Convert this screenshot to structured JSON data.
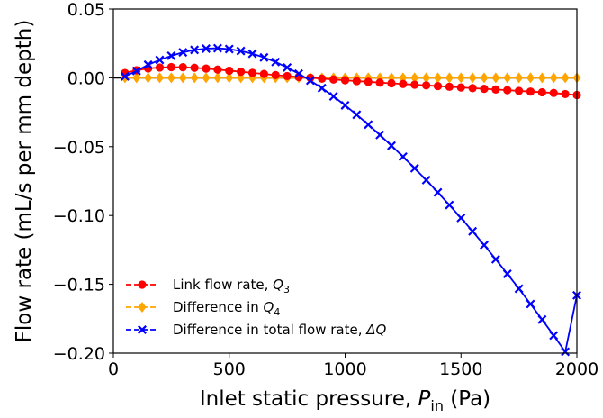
{
  "chart_data": {
    "type": "line",
    "title": "",
    "xlabel_main": "Inlet static pressure, ",
    "xlabel_var": "P",
    "xlabel_sub": "in",
    "xlabel_unit": " (Pa)",
    "ylabel": "Flow rate (mL/s per mm depth)",
    "xlim": [
      0,
      2000
    ],
    "ylim": [
      -0.2,
      0.05
    ],
    "xticks": [
      0,
      500,
      1000,
      1500,
      2000
    ],
    "xtick_labels": [
      "0",
      "500",
      "1000",
      "1500",
      "2000"
    ],
    "yticks": [
      0.05,
      0.0,
      -0.05,
      -0.1,
      -0.15,
      -0.2
    ],
    "ytick_labels": [
      "0.05",
      "0.00",
      "−0.05",
      "−0.10",
      "−0.15",
      "−0.20"
    ],
    "grid": false,
    "legend_position": "lower-left",
    "zero_line": true,
    "x": [
      50,
      100,
      150,
      200,
      250,
      300,
      350,
      400,
      450,
      500,
      550,
      600,
      650,
      700,
      750,
      800,
      850,
      900,
      950,
      1000,
      1050,
      1100,
      1150,
      1200,
      1250,
      1300,
      1350,
      1400,
      1450,
      1500,
      1550,
      1600,
      1650,
      1700,
      1750,
      1800,
      1850,
      1900,
      1950,
      2000
    ],
    "series": [
      {
        "name_main": "Link flow rate, ",
        "name_var": "Q",
        "name_sub": "3",
        "color": "#ff0000",
        "marker": "circle",
        "values": [
          0.0035,
          0.0055,
          0.0068,
          0.0075,
          0.0078,
          0.0077,
          0.0073,
          0.0067,
          0.006,
          0.0052,
          0.0044,
          0.0036,
          0.0028,
          0.002,
          0.0013,
          0.0006,
          0.0,
          -0.0006,
          -0.0012,
          -0.0018,
          -0.0024,
          -0.0029,
          -0.0035,
          -0.004,
          -0.0045,
          -0.005,
          -0.0055,
          -0.006,
          -0.0065,
          -0.007,
          -0.0075,
          -0.008,
          -0.0085,
          -0.009,
          -0.0095,
          -0.01,
          -0.0105,
          -0.011,
          -0.0118,
          -0.0125
        ]
      },
      {
        "name_main": "Difference in ",
        "name_var": "Q",
        "name_sub": "4",
        "color": "#ffa500",
        "marker": "diamond",
        "values": [
          0.0,
          0.0,
          0.0,
          0.0,
          0.0,
          0.0,
          0.0,
          0.0,
          0.0,
          0.0,
          0.0,
          0.0,
          0.0,
          0.0,
          0.0,
          0.0,
          0.0,
          0.0,
          0.0,
          0.0,
          0.0,
          0.0,
          0.0,
          0.0,
          0.0,
          0.0,
          0.0,
          0.0,
          0.0,
          0.0,
          0.0,
          0.0,
          0.0,
          0.0,
          0.0,
          0.0,
          0.0,
          0.0,
          0.0,
          0.0
        ]
      },
      {
        "name_main": "Difference in total flow rate, ",
        "name_var": "ΔQ",
        "name_sub": "",
        "color": "#0000ff",
        "marker": "x",
        "values": [
          0.001,
          0.005,
          0.0095,
          0.013,
          0.016,
          0.0185,
          0.0203,
          0.0212,
          0.0215,
          0.0209,
          0.0195,
          0.0175,
          0.0148,
          0.0115,
          0.0075,
          0.003,
          -0.002,
          -0.0075,
          -0.0135,
          -0.02,
          -0.0268,
          -0.034,
          -0.0415,
          -0.0493,
          -0.0573,
          -0.0657,
          -0.0743,
          -0.0832,
          -0.0924,
          -0.1018,
          -0.1115,
          -0.1215,
          -0.1318,
          -0.1424,
          -0.1532,
          -0.1643,
          -0.1756,
          -0.1872,
          -0.199,
          -0.158
        ]
      }
    ]
  }
}
